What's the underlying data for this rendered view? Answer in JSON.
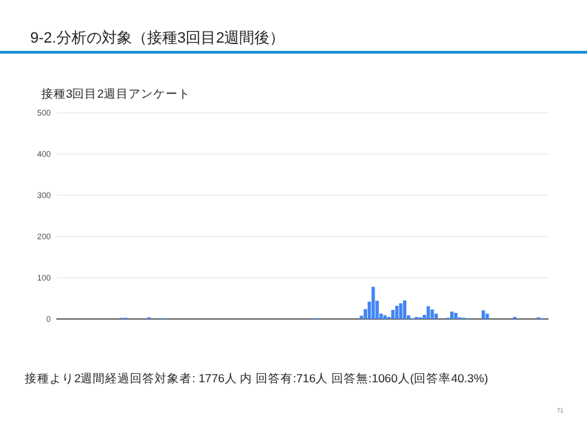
{
  "chart_data": {
    "type": "bar",
    "title": "9-2.分析の対象（接種3回目2週間後）",
    "subtitle": "接種3回目2週目アンケート",
    "annotations": [
      "接種より2週間経過回答対象者: 1776人  内 回答有:716人   回答無:1060人(回答率40.3%)",
      "71"
    ],
    "categories": [
      null,
      null,
      null,
      null,
      null,
      null,
      null,
      null,
      null,
      null,
      null,
      null,
      null,
      null,
      null,
      null,
      null,
      null,
      null,
      null,
      null,
      null,
      null,
      null,
      null,
      null,
      null,
      null,
      null,
      null,
      null,
      null,
      null,
      null,
      null,
      null,
      null,
      null,
      null,
      null,
      null,
      null,
      null,
      null,
      null,
      null,
      null,
      null,
      null,
      null,
      null,
      null,
      null,
      null,
      null,
      null,
      null,
      null,
      null,
      null,
      null,
      null,
      null,
      null,
      null,
      null,
      null,
      null,
      null,
      null,
      null,
      null,
      null,
      null,
      null,
      null,
      null,
      null,
      null,
      null,
      null,
      null,
      null,
      null,
      null,
      null,
      null,
      null,
      null,
      null,
      null,
      null,
      null,
      null,
      null,
      null,
      null,
      null,
      null,
      null,
      null,
      null,
      null,
      null,
      null,
      null,
      null,
      null,
      null,
      null,
      null,
      null,
      null,
      null,
      null,
      null,
      null,
      null,
      null,
      null,
      null,
      null,
      null,
      null,
      null
    ],
    "values": [
      0,
      0,
      0,
      0,
      0,
      0,
      0,
      0,
      0,
      0,
      0,
      0,
      0,
      0,
      0,
      0,
      3,
      3,
      0,
      0,
      0,
      0,
      0,
      4,
      0,
      0,
      2,
      2,
      0,
      0,
      0,
      0,
      0,
      0,
      0,
      0,
      0,
      0,
      0,
      0,
      0,
      0,
      0,
      0,
      0,
      0,
      0,
      0,
      0,
      0,
      0,
      0,
      0,
      0,
      0,
      0,
      0,
      0,
      0,
      0,
      0,
      0,
      0,
      0,
      0,
      2,
      2,
      0,
      0,
      0,
      0,
      0,
      0,
      0,
      0,
      0,
      0,
      8,
      24,
      42,
      78,
      44,
      13,
      9,
      5,
      22,
      32,
      38,
      45,
      9,
      2,
      5,
      4,
      10,
      31,
      23,
      13,
      0,
      0,
      3,
      18,
      15,
      4,
      3,
      2,
      0,
      0,
      0,
      21,
      13,
      0,
      0,
      0,
      0,
      0,
      0,
      5,
      0,
      0,
      0,
      0,
      0,
      4,
      2,
      0
    ],
    "color": "#4285f4",
    "ylim": [
      0,
      500
    ],
    "yticks": [
      0,
      100,
      200,
      300,
      400,
      500
    ],
    "grid": "y"
  }
}
